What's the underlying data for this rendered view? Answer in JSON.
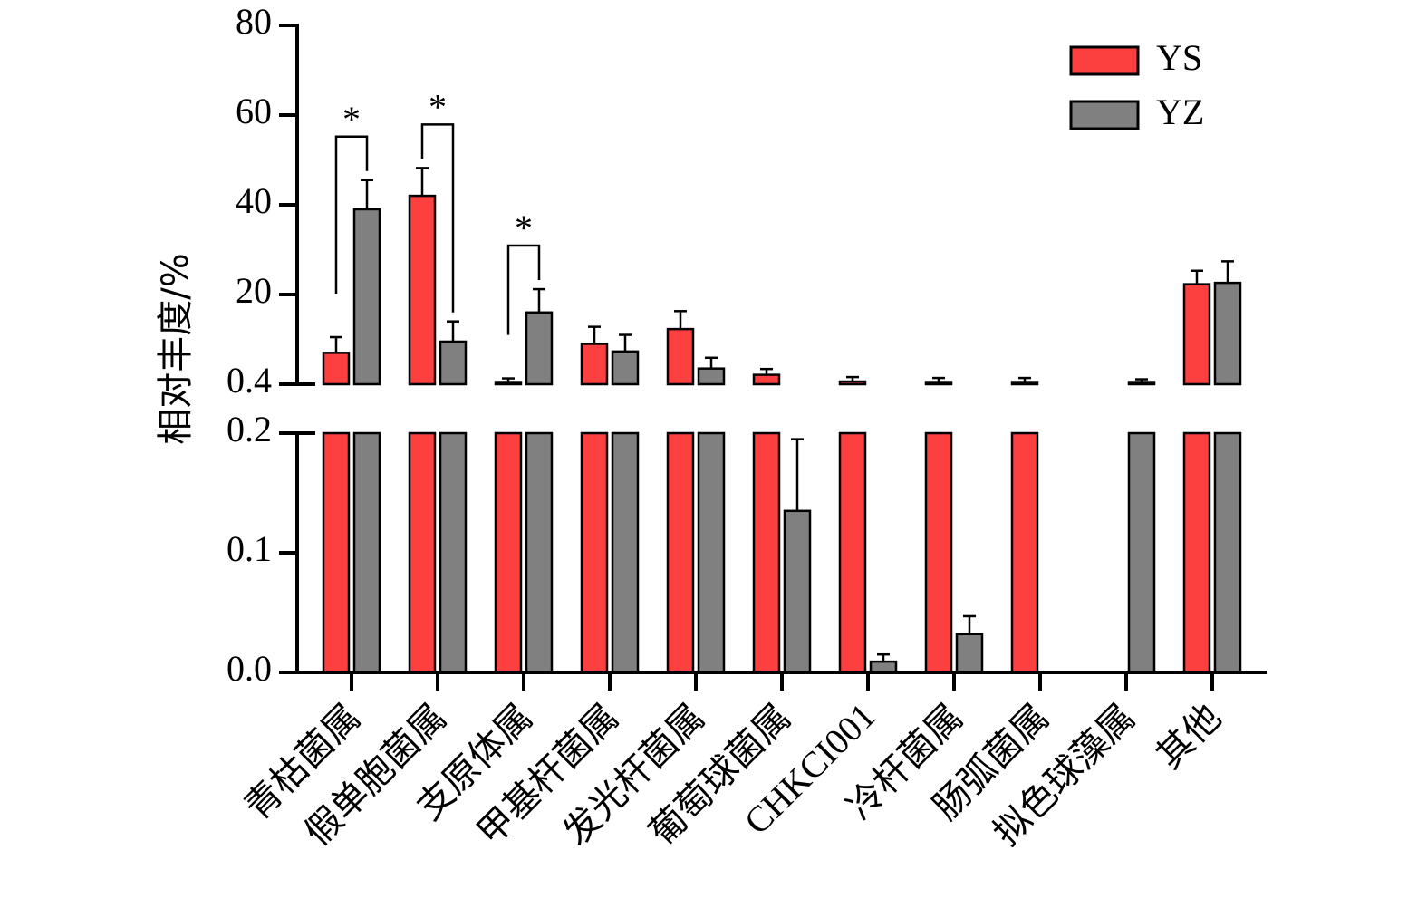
{
  "chart_data": {
    "type": "bar",
    "ylabel": "相对丰度/%",
    "categories": [
      "青枯菌属",
      "假单胞菌属",
      "支原体属",
      "甲基杆菌属",
      "发光杆菌属",
      "葡萄球菌属",
      "CHKCI001",
      "冷杆菌属",
      "肠弧菌属",
      "拟色球藻属",
      "其他"
    ],
    "series": [
      {
        "name": "YS",
        "color": "#fc4040",
        "values": [
          7.0,
          42.0,
          0.5,
          9.0,
          12.3,
          2.1,
          0.6,
          0.5,
          0.5,
          0.0,
          22.3
        ],
        "errors": [
          3.5,
          6.2,
          0.8,
          3.8,
          4.0,
          1.3,
          1.0,
          0.9,
          0.9,
          0.0,
          3.0
        ]
      },
      {
        "name": "YZ",
        "color": "#808080",
        "values": [
          39.0,
          9.5,
          16.0,
          7.3,
          3.5,
          0.135,
          0.009,
          0.032,
          0.0,
          0.5,
          22.6
        ],
        "errors": [
          6.5,
          4.5,
          5.2,
          3.7,
          2.4,
          0.06,
          0.006,
          0.015,
          0.0,
          0.6,
          4.8
        ]
      }
    ],
    "y_axis_upper": {
      "min": 0.4,
      "max": 80,
      "ticks": [
        "0.4",
        "20",
        "40",
        "60",
        "80"
      ],
      "tick_values": [
        0,
        20,
        40,
        60,
        80
      ]
    },
    "y_axis_lower": {
      "min": 0.0,
      "max": 0.2,
      "ticks": [
        "0.0",
        "0.1",
        "0.2"
      ],
      "tick_values": [
        0,
        0.1,
        0.2
      ]
    },
    "axis_break": true,
    "significance": [
      {
        "category_index": 0,
        "label": "*"
      },
      {
        "category_index": 1,
        "label": "*"
      },
      {
        "category_index": 2,
        "label": "*"
      }
    ],
    "legend_position": "top-right",
    "grid": false
  }
}
